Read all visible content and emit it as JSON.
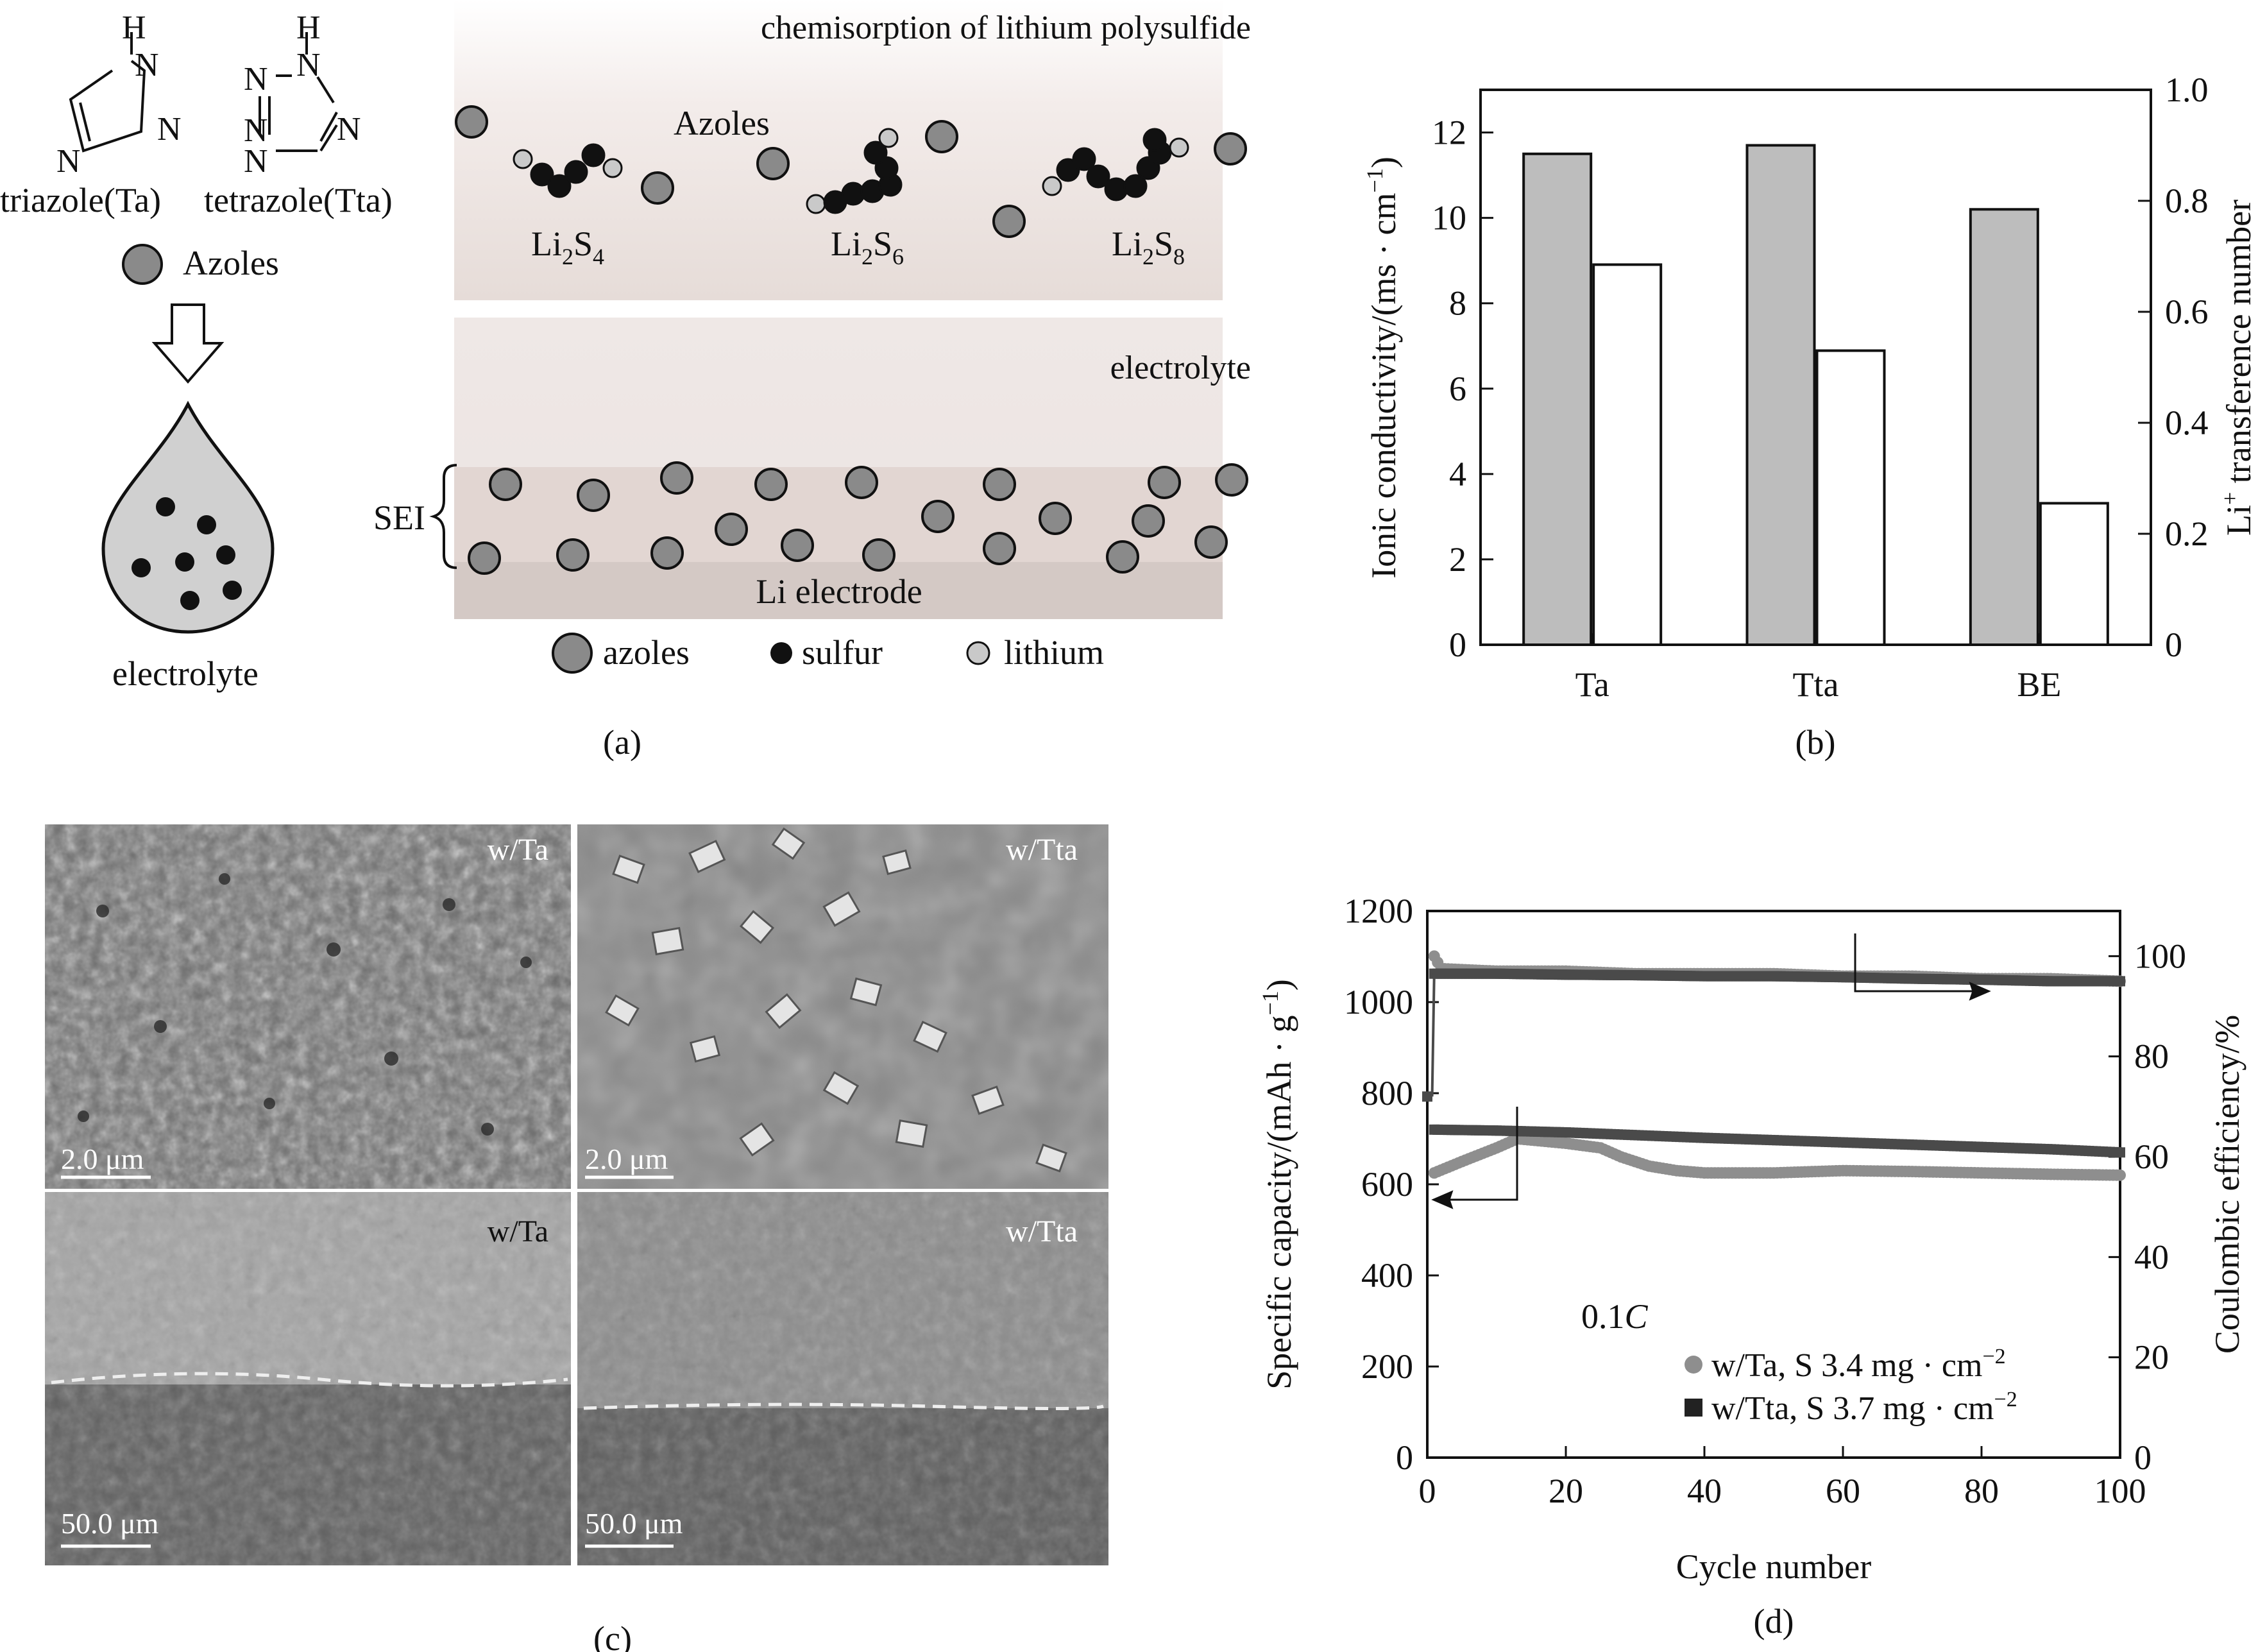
{
  "panel_a": {
    "caption": "(a)",
    "molecules": {
      "triazole": "triazole(Ta)",
      "tetrazole": "tetrazole(Tta)",
      "atom_H": "H",
      "atom_N": "N"
    },
    "azoles_legend": "Azoles",
    "electrolyte_label": "electrolyte",
    "top_box": {
      "title": "chemisorption of lithium polysulfide",
      "azoles_label": "Azoles",
      "species": [
        {
          "base": "Li",
          "s1": "2",
          "mid": "S",
          "s2": "4"
        },
        {
          "base": "Li",
          "s1": "2",
          "mid": "S",
          "s2": "6"
        },
        {
          "base": "Li",
          "s1": "2",
          "mid": "S",
          "s2": "8"
        }
      ]
    },
    "bottom_box": {
      "electrolyte": "electrolyte",
      "sei": "SEI",
      "li_electrode": "Li electrode"
    },
    "legend": {
      "azoles": "azoles",
      "sulfur": "sulfur",
      "lithium": "lithium"
    }
  },
  "panel_b": {
    "caption": "(b)",
    "chart_data": {
      "type": "bar",
      "categories": [
        "Ta",
        "Tta",
        "BE"
      ],
      "series": [
        {
          "values": [
            11.5,
            11.7,
            10.2
          ],
          "axis": "left",
          "color": "#bdbdbd"
        },
        {
          "values": [
            0.685,
            0.53,
            0.255
          ],
          "axis": "right",
          "color": "#ffffff"
        }
      ],
      "ylabel_left": "Ionic conductivity/(ms · cm",
      "ylabel_left_sup": "−1",
      "ylabel_left_tail": ")",
      "ylabel_right_pre": "Li",
      "ylabel_right_sup": "+",
      "ylabel_right_tail": " transference number",
      "ylim_left": [
        0,
        13
      ],
      "ylim_right": [
        0,
        1.0
      ],
      "yticks_left": [
        "0",
        "2",
        "4",
        "6",
        "8",
        "10",
        "12"
      ],
      "yticks_right": [
        "0",
        "0.2",
        "0.4",
        "0.6",
        "0.8",
        "1.0"
      ]
    }
  },
  "panel_c": {
    "caption": "(c)",
    "images": [
      {
        "label": "w/Ta",
        "scale": "2.0 μm"
      },
      {
        "label": "w/Tta",
        "scale": "2.0 μm"
      },
      {
        "label": "w/Ta",
        "scale": "50.0 μm"
      },
      {
        "label": "w/Tta",
        "scale": "50.0 μm"
      }
    ]
  },
  "panel_d": {
    "caption": "(d)",
    "chart_data": {
      "type": "scatter",
      "xlabel": "Cycle number",
      "ylabel_left_pre": "Specific capacity/(mAh · g",
      "ylabel_left_sup": "−1",
      "ylabel_left_tail": ")",
      "ylabel_right": "Coulombic efficiency/%",
      "xlim": [
        0,
        100
      ],
      "ylim_left": [
        0,
        1200
      ],
      "ylim_right": [
        0,
        109
      ],
      "xticks": [
        "0",
        "20",
        "40",
        "60",
        "80",
        "100"
      ],
      "yticks_left": [
        "0",
        "200",
        "400",
        "600",
        "800",
        "1000",
        "1200"
      ],
      "yticks_right": [
        "0",
        "20",
        "40",
        "60",
        "80",
        "100"
      ],
      "annotation_rate": "0.1",
      "annotation_rate_unit": "C",
      "series": [
        {
          "name": "w/Ta, S 3.4 mg · cm",
          "name_sup": "−2",
          "marker": "circle",
          "color": "#8e8e8e",
          "capacity_x": [
            1,
            5,
            10,
            13,
            20,
            25,
            28,
            32,
            36,
            40,
            50,
            60,
            70,
            80,
            90,
            100
          ],
          "capacity_y": [
            625,
            650,
            680,
            700,
            690,
            680,
            660,
            640,
            630,
            625,
            625,
            630,
            628,
            625,
            622,
            620
          ],
          "ce_x": [
            1,
            2,
            10,
            20,
            30,
            40,
            50,
            60,
            70,
            80,
            90,
            100
          ],
          "ce_y": [
            100,
            97.5,
            97,
            97,
            96.5,
            96.5,
            96.5,
            96,
            96,
            95.5,
            95.5,
            95
          ]
        },
        {
          "name": "w/Tta, S 3.7 mg · cm",
          "name_sup": "−2",
          "marker": "square",
          "color": "#4a4a4a",
          "capacity_x": [
            1,
            10,
            20,
            30,
            40,
            50,
            60,
            70,
            80,
            90,
            100
          ],
          "capacity_y": [
            720,
            718,
            714,
            708,
            702,
            697,
            692,
            687,
            682,
            677,
            670
          ],
          "ce_x": [
            0,
            0.7,
            1,
            10,
            20,
            30,
            40,
            50,
            60,
            70,
            80,
            90,
            100
          ],
          "ce_y": [
            72,
            72,
            96.5,
            96.5,
            96.3,
            96.2,
            96,
            96,
            95.8,
            95.5,
            95.3,
            95,
            95
          ]
        }
      ]
    }
  }
}
